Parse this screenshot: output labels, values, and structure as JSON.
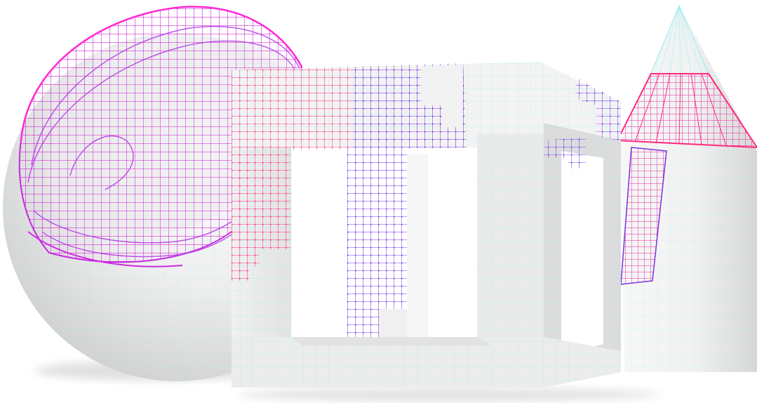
{
  "scene": {
    "background_color": "#ffffff",
    "objects": [
      "sphere",
      "hollow-cube-frame",
      "cone"
    ],
    "wireframe_colors": {
      "magenta": "#ff2ad4",
      "pink": "#ff3a8c",
      "violet": "#8a3cf0",
      "blue": "#3b3be8"
    },
    "grid_color": "#8ff0f0"
  }
}
